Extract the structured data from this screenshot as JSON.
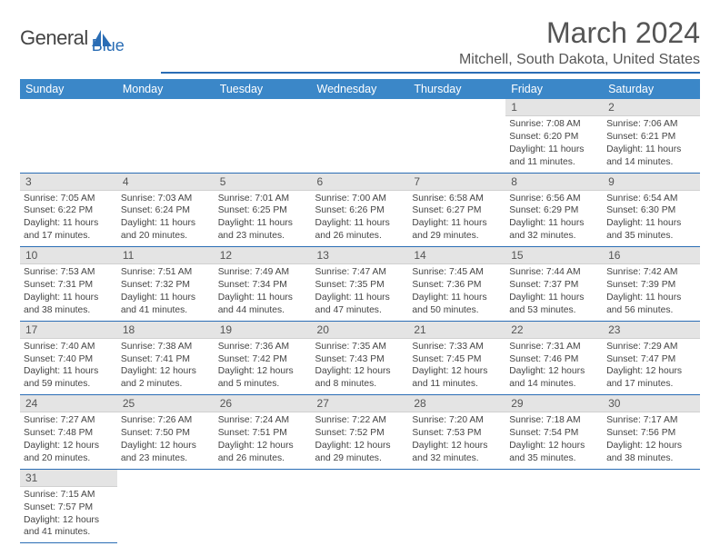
{
  "brand": {
    "name_part1": "General",
    "name_part2": "Blue"
  },
  "title": "March 2024",
  "location": "Mitchell, South Dakota, United States",
  "colors": {
    "header_bg": "#3b87c8",
    "header_text": "#ffffff",
    "accent_line": "#2a6db5",
    "daynum_bg": "#e4e4e4",
    "text": "#444444"
  },
  "day_headers": [
    "Sunday",
    "Monday",
    "Tuesday",
    "Wednesday",
    "Thursday",
    "Friday",
    "Saturday"
  ],
  "weeks": [
    [
      null,
      null,
      null,
      null,
      null,
      {
        "n": "1",
        "sr": "7:08 AM",
        "ss": "6:20 PM",
        "dl": "11 hours and 11 minutes."
      },
      {
        "n": "2",
        "sr": "7:06 AM",
        "ss": "6:21 PM",
        "dl": "11 hours and 14 minutes."
      }
    ],
    [
      {
        "n": "3",
        "sr": "7:05 AM",
        "ss": "6:22 PM",
        "dl": "11 hours and 17 minutes."
      },
      {
        "n": "4",
        "sr": "7:03 AM",
        "ss": "6:24 PM",
        "dl": "11 hours and 20 minutes."
      },
      {
        "n": "5",
        "sr": "7:01 AM",
        "ss": "6:25 PM",
        "dl": "11 hours and 23 minutes."
      },
      {
        "n": "6",
        "sr": "7:00 AM",
        "ss": "6:26 PM",
        "dl": "11 hours and 26 minutes."
      },
      {
        "n": "7",
        "sr": "6:58 AM",
        "ss": "6:27 PM",
        "dl": "11 hours and 29 minutes."
      },
      {
        "n": "8",
        "sr": "6:56 AM",
        "ss": "6:29 PM",
        "dl": "11 hours and 32 minutes."
      },
      {
        "n": "9",
        "sr": "6:54 AM",
        "ss": "6:30 PM",
        "dl": "11 hours and 35 minutes."
      }
    ],
    [
      {
        "n": "10",
        "sr": "7:53 AM",
        "ss": "7:31 PM",
        "dl": "11 hours and 38 minutes."
      },
      {
        "n": "11",
        "sr": "7:51 AM",
        "ss": "7:32 PM",
        "dl": "11 hours and 41 minutes."
      },
      {
        "n": "12",
        "sr": "7:49 AM",
        "ss": "7:34 PM",
        "dl": "11 hours and 44 minutes."
      },
      {
        "n": "13",
        "sr": "7:47 AM",
        "ss": "7:35 PM",
        "dl": "11 hours and 47 minutes."
      },
      {
        "n": "14",
        "sr": "7:45 AM",
        "ss": "7:36 PM",
        "dl": "11 hours and 50 minutes."
      },
      {
        "n": "15",
        "sr": "7:44 AM",
        "ss": "7:37 PM",
        "dl": "11 hours and 53 minutes."
      },
      {
        "n": "16",
        "sr": "7:42 AM",
        "ss": "7:39 PM",
        "dl": "11 hours and 56 minutes."
      }
    ],
    [
      {
        "n": "17",
        "sr": "7:40 AM",
        "ss": "7:40 PM",
        "dl": "11 hours and 59 minutes."
      },
      {
        "n": "18",
        "sr": "7:38 AM",
        "ss": "7:41 PM",
        "dl": "12 hours and 2 minutes."
      },
      {
        "n": "19",
        "sr": "7:36 AM",
        "ss": "7:42 PM",
        "dl": "12 hours and 5 minutes."
      },
      {
        "n": "20",
        "sr": "7:35 AM",
        "ss": "7:43 PM",
        "dl": "12 hours and 8 minutes."
      },
      {
        "n": "21",
        "sr": "7:33 AM",
        "ss": "7:45 PM",
        "dl": "12 hours and 11 minutes."
      },
      {
        "n": "22",
        "sr": "7:31 AM",
        "ss": "7:46 PM",
        "dl": "12 hours and 14 minutes."
      },
      {
        "n": "23",
        "sr": "7:29 AM",
        "ss": "7:47 PM",
        "dl": "12 hours and 17 minutes."
      }
    ],
    [
      {
        "n": "24",
        "sr": "7:27 AM",
        "ss": "7:48 PM",
        "dl": "12 hours and 20 minutes."
      },
      {
        "n": "25",
        "sr": "7:26 AM",
        "ss": "7:50 PM",
        "dl": "12 hours and 23 minutes."
      },
      {
        "n": "26",
        "sr": "7:24 AM",
        "ss": "7:51 PM",
        "dl": "12 hours and 26 minutes."
      },
      {
        "n": "27",
        "sr": "7:22 AM",
        "ss": "7:52 PM",
        "dl": "12 hours and 29 minutes."
      },
      {
        "n": "28",
        "sr": "7:20 AM",
        "ss": "7:53 PM",
        "dl": "12 hours and 32 minutes."
      },
      {
        "n": "29",
        "sr": "7:18 AM",
        "ss": "7:54 PM",
        "dl": "12 hours and 35 minutes."
      },
      {
        "n": "30",
        "sr": "7:17 AM",
        "ss": "7:56 PM",
        "dl": "12 hours and 38 minutes."
      }
    ],
    [
      {
        "n": "31",
        "sr": "7:15 AM",
        "ss": "7:57 PM",
        "dl": "12 hours and 41 minutes."
      },
      null,
      null,
      null,
      null,
      null,
      null
    ]
  ],
  "labels": {
    "sunrise": "Sunrise:",
    "sunset": "Sunset:",
    "daylight": "Daylight:"
  }
}
